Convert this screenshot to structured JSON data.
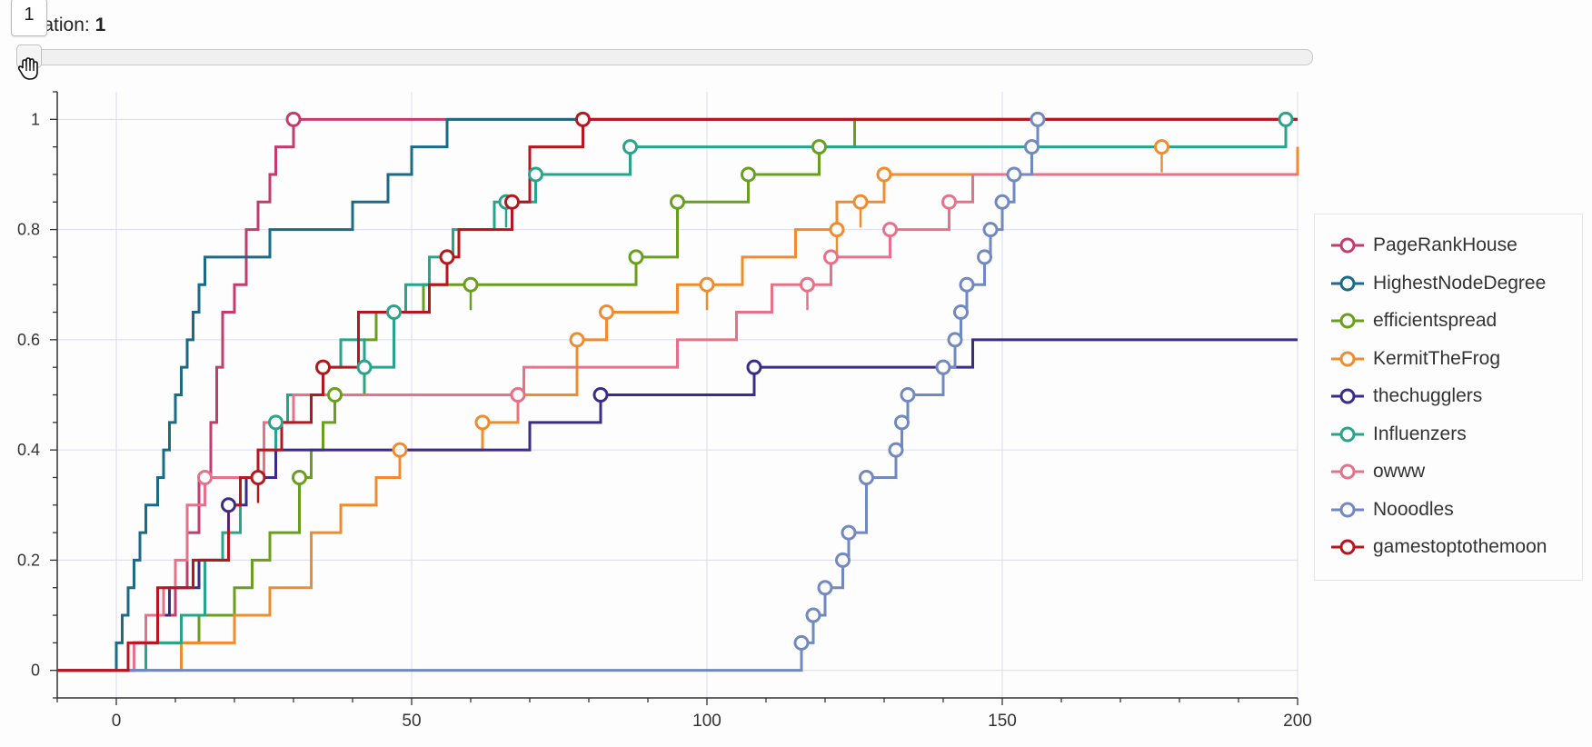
{
  "slider": {
    "title_prefix": "Iteration: ",
    "value": "1",
    "tooltip": "1",
    "start": 1,
    "end": 2
  },
  "icons": {
    "cursor": "grab-hand-icon"
  },
  "chart_data": {
    "type": "line",
    "line_style": "step",
    "title": "",
    "xlabel": "",
    "ylabel": "",
    "xlim": [
      -10,
      200
    ],
    "ylim": [
      -0.05,
      1.05
    ],
    "xticks": [
      0,
      50,
      100,
      150,
      200
    ],
    "yticks": [
      0,
      0.2,
      0.4,
      0.6,
      0.8,
      1
    ],
    "ytick_labels": [
      "0",
      "0.2",
      "0.4",
      "0.6",
      "0.8",
      "1"
    ],
    "grid": true,
    "legend_position": "right",
    "series": [
      {
        "name": "PageRankHouse",
        "color": "#c43b6e",
        "x": [
          -10,
          3,
          7,
          10,
          12,
          14,
          16,
          17,
          18,
          20,
          22,
          24,
          26,
          27,
          30,
          200
        ],
        "y": [
          0,
          0.05,
          0.1,
          0.15,
          0.25,
          0.35,
          0.45,
          0.55,
          0.65,
          0.7,
          0.8,
          0.85,
          0.9,
          0.95,
          1,
          1
        ],
        "markers": [
          [
            30,
            1
          ]
        ]
      },
      {
        "name": "HighestNodeDegree",
        "color": "#1b6b87",
        "x": [
          -10,
          0,
          1,
          2,
          3,
          4,
          5,
          7,
          8,
          9,
          10,
          11,
          12,
          13,
          14,
          15,
          17,
          18,
          21,
          26,
          40,
          46,
          50,
          56,
          57,
          200
        ],
        "y": [
          0,
          0.05,
          0.1,
          0.15,
          0.2,
          0.25,
          0.3,
          0.35,
          0.4,
          0.45,
          0.5,
          0.55,
          0.6,
          0.65,
          0.7,
          0.75,
          0.75,
          0.75,
          0.75,
          0.8,
          0.85,
          0.9,
          0.95,
          1,
          1,
          1
        ],
        "markers": []
      },
      {
        "name": "efficientspread",
        "color": "#6a9e1f",
        "x": [
          -10,
          3,
          6,
          14,
          20,
          23,
          26,
          31,
          33,
          35,
          37,
          42,
          44,
          52,
          60,
          88,
          95,
          107,
          119,
          125,
          200
        ],
        "y": [
          0,
          0.05,
          0.05,
          0.1,
          0.15,
          0.2,
          0.25,
          0.35,
          0.4,
          0.45,
          0.5,
          0.6,
          0.65,
          0.7,
          0.7,
          0.75,
          0.85,
          0.9,
          0.95,
          1,
          1
        ],
        "markers": [
          [
            31,
            0.35
          ],
          [
            37,
            0.5
          ],
          [
            60,
            0.7
          ],
          [
            88,
            0.75
          ],
          [
            95,
            0.85
          ],
          [
            107,
            0.9
          ],
          [
            119,
            0.95
          ]
        ]
      },
      {
        "name": "KermitTheFrog",
        "color": "#f08c2e",
        "x": [
          -10,
          11,
          20,
          26,
          33,
          38,
          44,
          48,
          62,
          68,
          78,
          83,
          95,
          100,
          106,
          115,
          122,
          126,
          130,
          144,
          200
        ],
        "y": [
          0,
          0.05,
          0.1,
          0.15,
          0.25,
          0.3,
          0.35,
          0.4,
          0.45,
          0.5,
          0.6,
          0.65,
          0.7,
          0.7,
          0.75,
          0.8,
          0.85,
          0.85,
          0.9,
          0.9,
          0.95
        ],
        "markers": [
          [
            48,
            0.4
          ],
          [
            62,
            0.45
          ],
          [
            68,
            0.5
          ],
          [
            78,
            0.6
          ],
          [
            83,
            0.65
          ],
          [
            100,
            0.7
          ],
          [
            122,
            0.8
          ],
          [
            126,
            0.85
          ],
          [
            130,
            0.9
          ],
          [
            177,
            0.95
          ]
        ]
      },
      {
        "name": "thechugglers",
        "color": "#3b2c8a",
        "x": [
          -10,
          3,
          5,
          9,
          14,
          19,
          22,
          27,
          70,
          82,
          108,
          145,
          200
        ],
        "y": [
          0,
          0.05,
          0.1,
          0.15,
          0.2,
          0.3,
          0.35,
          0.4,
          0.45,
          0.5,
          0.55,
          0.6,
          0.6
        ],
        "markers": [
          [
            19,
            0.3
          ],
          [
            82,
            0.5
          ],
          [
            108,
            0.55
          ]
        ]
      },
      {
        "name": "Influenzers",
        "color": "#27a58b",
        "x": [
          -10,
          5,
          11,
          15,
          18,
          21,
          24,
          27,
          29,
          33,
          35,
          38,
          42,
          47,
          49,
          53,
          57,
          64,
          66,
          71,
          87,
          198,
          200
        ],
        "y": [
          0,
          0.05,
          0.1,
          0.2,
          0.25,
          0.35,
          0.4,
          0.45,
          0.5,
          0.5,
          0.55,
          0.6,
          0.55,
          0.65,
          0.7,
          0.75,
          0.8,
          0.85,
          0.85,
          0.9,
          0.95,
          1,
          1
        ],
        "markers": [
          [
            27,
            0.45
          ],
          [
            42,
            0.55
          ],
          [
            47,
            0.65
          ],
          [
            66,
            0.85
          ],
          [
            71,
            0.9
          ],
          [
            87,
            0.95
          ],
          [
            198,
            1
          ]
        ]
      },
      {
        "name": "owww",
        "color": "#e8718a",
        "x": [
          -10,
          3,
          5,
          8,
          10,
          12,
          15,
          16,
          25,
          30,
          37,
          69,
          95,
          105,
          111,
          117,
          121,
          131,
          141,
          145,
          200
        ],
        "y": [
          0,
          0.05,
          0.1,
          0.15,
          0.2,
          0.3,
          0.35,
          0.35,
          0.45,
          0.5,
          0.5,
          0.55,
          0.6,
          0.65,
          0.7,
          0.7,
          0.75,
          0.8,
          0.85,
          0.9,
          0.9
        ],
        "markers": [
          [
            15,
            0.35
          ],
          [
            68,
            0.5
          ],
          [
            117,
            0.7
          ],
          [
            121,
            0.75
          ],
          [
            131,
            0.8
          ],
          [
            141,
            0.85
          ]
        ]
      },
      {
        "name": "Nooodles",
        "color": "#7189c0",
        "x": [
          -10,
          116,
          118,
          120,
          123,
          124,
          127,
          132,
          133,
          134,
          140,
          142,
          143,
          144,
          147,
          148,
          150,
          152,
          155,
          156,
          200
        ],
        "y": [
          0,
          0.05,
          0.1,
          0.15,
          0.2,
          0.25,
          0.35,
          0.4,
          0.45,
          0.5,
          0.55,
          0.6,
          0.65,
          0.7,
          0.75,
          0.8,
          0.85,
          0.9,
          0.95,
          1,
          1
        ],
        "markers": [
          [
            116,
            0.05
          ],
          [
            118,
            0.1
          ],
          [
            120,
            0.15
          ],
          [
            123,
            0.2
          ],
          [
            124,
            0.25
          ],
          [
            127,
            0.35
          ],
          [
            132,
            0.4
          ],
          [
            133,
            0.45
          ],
          [
            134,
            0.5
          ],
          [
            140,
            0.55
          ],
          [
            142,
            0.6
          ],
          [
            143,
            0.65
          ],
          [
            144,
            0.7
          ],
          [
            147,
            0.75
          ],
          [
            148,
            0.8
          ],
          [
            150,
            0.85
          ],
          [
            152,
            0.9
          ],
          [
            155,
            0.95
          ],
          [
            156,
            1
          ]
        ]
      },
      {
        "name": "gamestoptothemoon",
        "color": "#b8161f",
        "x": [
          -10,
          2,
          7,
          13,
          19,
          21,
          24,
          28,
          33,
          35,
          41,
          47,
          53,
          56,
          58,
          67,
          70,
          79,
          200
        ],
        "y": [
          0,
          0.05,
          0.15,
          0.2,
          0.3,
          0.35,
          0.4,
          0.45,
          0.5,
          0.55,
          0.65,
          0.65,
          0.7,
          0.75,
          0.8,
          0.85,
          0.95,
          1,
          1
        ],
        "markers": [
          [
            24,
            0.35
          ],
          [
            35,
            0.55
          ],
          [
            56,
            0.75
          ],
          [
            67,
            0.85
          ],
          [
            79,
            1
          ]
        ]
      }
    ]
  }
}
